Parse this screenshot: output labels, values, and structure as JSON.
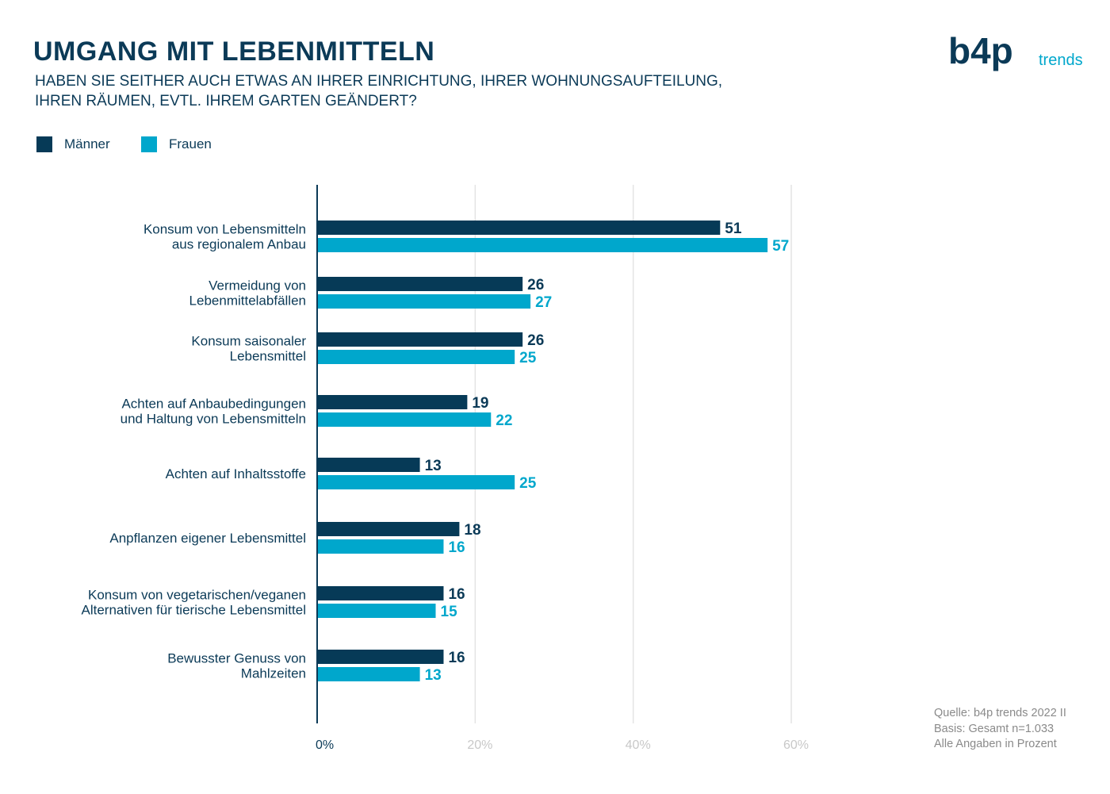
{
  "title": "UMGANG MIT LEBENMITTELN",
  "subtitle_lines": [
    "HABEN SIE SEITHER AUCH ETWAS AN IHRER EINRICHTUNG, IHRER WOHNUNGSAUFTEILUNG,",
    "IHREN RÄUMEN, EVTL. IHREM GARTEN GEÄNDERT?"
  ],
  "logo": {
    "main": "b4p",
    "sub": "trends"
  },
  "colors": {
    "maenner": "#063a57",
    "frauen": "#00a7cc",
    "axis": "#0b3a57",
    "grid": "#e4e4e4",
    "tick_muted": "#c8c8c8",
    "source": "#8a8a8a"
  },
  "legend": [
    {
      "label": "Männer",
      "color": "#063a57"
    },
    {
      "label": "Frauen",
      "color": "#00a7cc"
    }
  ],
  "chart_data": {
    "type": "bar",
    "orientation": "horizontal",
    "categories": [
      [
        "Konsum von Lebensmitteln",
        "aus regionalem Anbau"
      ],
      [
        "Vermeidung von",
        "Lebenmittelabfällen"
      ],
      [
        "Konsum saisonaler",
        "Lebensmittel"
      ],
      [
        "Achten auf Anbaubedingungen",
        "und Haltung von Lebensmitteln"
      ],
      [
        "Achten auf Inhaltsstoffe"
      ],
      [
        "Anpflanzen eigener Lebensmittel"
      ],
      [
        "Konsum von vegetarischen/veganen",
        "Alternativen für tierische Lebensmittel"
      ],
      [
        "Bewusster Genuss von",
        "Mahlzeiten"
      ]
    ],
    "series": [
      {
        "name": "Männer",
        "values": [
          51,
          26,
          26,
          19,
          13,
          18,
          16,
          16
        ]
      },
      {
        "name": "Frauen",
        "values": [
          57,
          27,
          25,
          22,
          25,
          16,
          15,
          13
        ]
      }
    ],
    "xlim": [
      0,
      60
    ],
    "x_ticks": [
      "0%",
      "20%",
      "40%",
      "60%"
    ],
    "x_tick_values": [
      0,
      20,
      40,
      60
    ],
    "grid": true,
    "legend_position": "top-left"
  },
  "source_lines": [
    "Quelle: b4p trends 2022 II",
    "Basis: Gesamt n=1.033",
    "Alle Angaben in Prozent"
  ]
}
